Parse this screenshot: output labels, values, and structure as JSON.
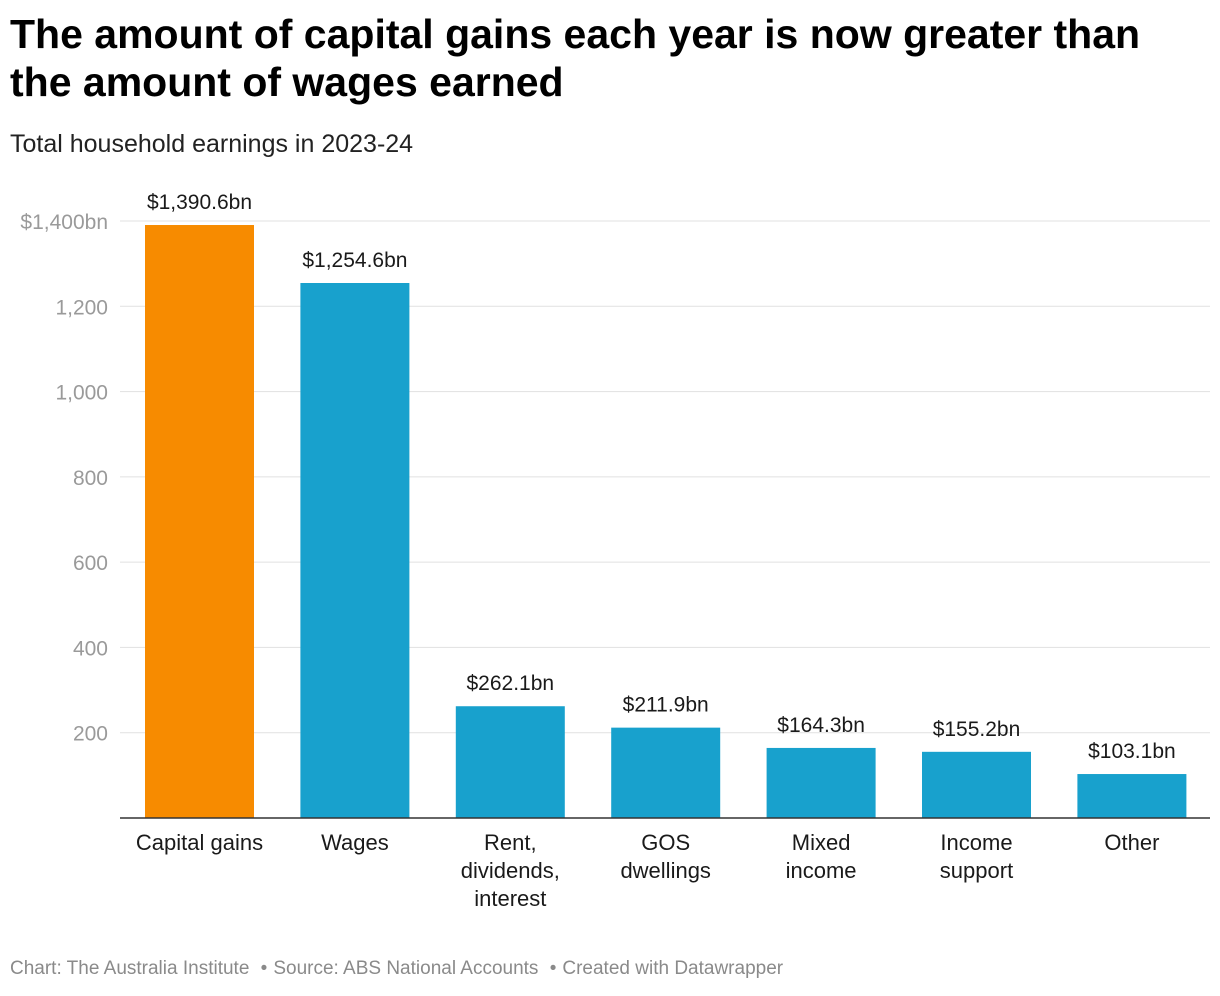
{
  "header": {
    "title": "The amount of capital gains each year is now greater than the amount of wages earned",
    "subtitle": "Total household earnings in 2023-24"
  },
  "footer": {
    "chart_credit": "Chart: The Australia Institute",
    "source": "Source: ABS National Accounts",
    "created_with": "Created with Datawrapper",
    "separator": "•"
  },
  "colors": {
    "highlight": "#f78b00",
    "bar": "#18a1cd",
    "grid": "#e1e1e1",
    "axis": "#333333"
  },
  "chart_data": {
    "type": "bar",
    "categories": [
      [
        "Capital gains"
      ],
      [
        "Wages"
      ],
      [
        "Rent,",
        "dividends,",
        "interest"
      ],
      [
        "GOS",
        "dwellings"
      ],
      [
        "Mixed",
        "income"
      ],
      [
        "Income",
        "support"
      ],
      [
        "Other"
      ]
    ],
    "values": [
      1390.6,
      1254.6,
      262.1,
      211.9,
      164.3,
      155.2,
      103.1
    ],
    "value_labels": [
      "$1,390.6bn",
      "$1,254.6bn",
      "$262.1bn",
      "$211.9bn",
      "$164.3bn",
      "$155.2bn",
      "$103.1bn"
    ],
    "highlight_index": 0,
    "ylim": [
      0,
      1400
    ],
    "yticks": [
      200,
      400,
      600,
      800,
      1000,
      1200,
      1400
    ],
    "ytick_labels": [
      "200",
      "400",
      "600",
      "800",
      "1,000",
      "1,200",
      "$1,400bn"
    ],
    "xlabel": "",
    "ylabel": "",
    "grid": true,
    "legend": "none"
  }
}
